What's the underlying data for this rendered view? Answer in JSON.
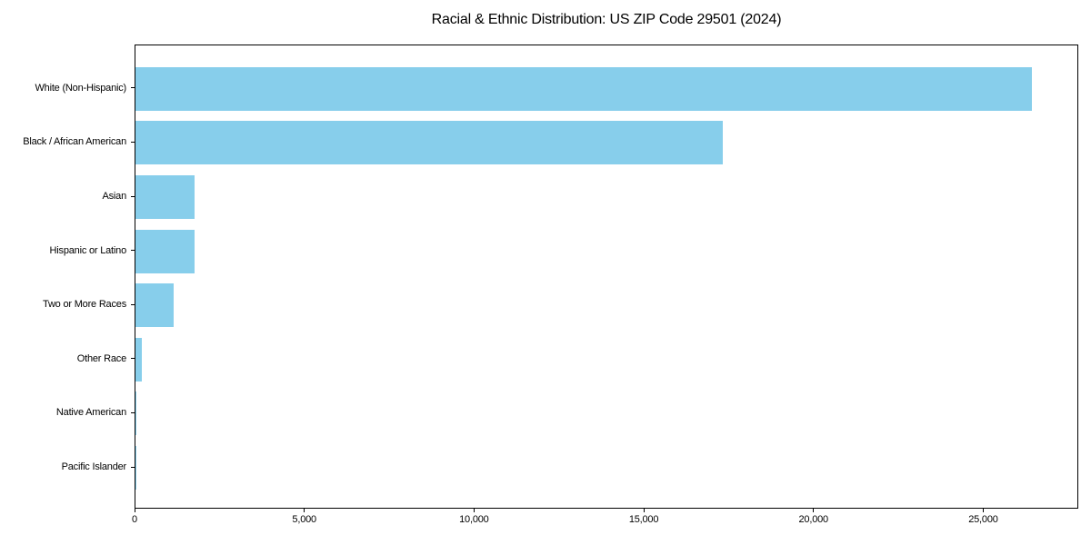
{
  "chart_data": {
    "type": "bar",
    "orientation": "horizontal",
    "title": "Racial & Ethnic Distribution: US ZIP Code 29501 (2024)",
    "categories": [
      "White (Non-Hispanic)",
      "Black / African American",
      "Asian",
      "Hispanic or Latino",
      "Two or More Races",
      "Other Race",
      "Native American",
      "Pacific Islander"
    ],
    "values": [
      26400,
      17290,
      1730,
      1750,
      1130,
      195,
      40,
      10
    ],
    "xlabel": "",
    "ylabel": "",
    "xlim": [
      0,
      27800
    ],
    "x_ticks": [
      0,
      5000,
      10000,
      15000,
      20000,
      25000
    ],
    "x_tick_labels": [
      "0",
      "5,000",
      "10,000",
      "15,000",
      "20,000",
      "25,000"
    ],
    "bar_color": "#87CEEB",
    "axis_color": "#000000",
    "text_color": "#000000",
    "background": "#ffffff",
    "grid": false,
    "legend_position": "none"
  }
}
